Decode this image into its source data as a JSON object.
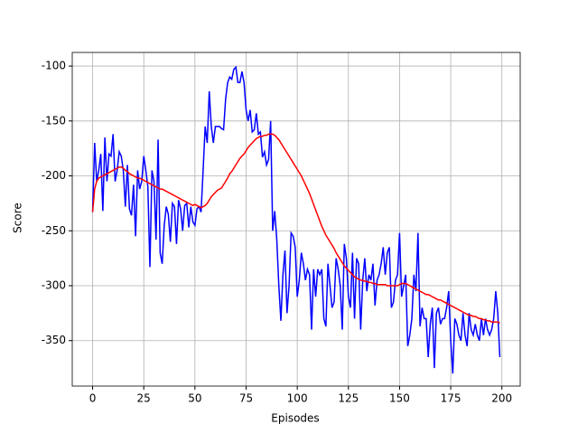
{
  "chart_data": {
    "type": "line",
    "xlabel": "Episodes",
    "ylabel": "Score",
    "x": [
      0,
      1,
      2,
      3,
      4,
      5,
      6,
      7,
      8,
      9,
      10,
      11,
      12,
      13,
      14,
      15,
      16,
      17,
      18,
      19,
      20,
      21,
      22,
      23,
      24,
      25,
      26,
      27,
      28,
      29,
      30,
      31,
      32,
      33,
      34,
      35,
      36,
      37,
      38,
      39,
      40,
      41,
      42,
      43,
      44,
      45,
      46,
      47,
      48,
      49,
      50,
      51,
      52,
      53,
      54,
      55,
      56,
      57,
      58,
      59,
      60,
      61,
      62,
      63,
      64,
      65,
      66,
      67,
      68,
      69,
      70,
      71,
      72,
      73,
      74,
      75,
      76,
      77,
      78,
      79,
      80,
      81,
      82,
      83,
      84,
      85,
      86,
      87,
      88,
      89,
      90,
      91,
      92,
      93,
      94,
      95,
      96,
      97,
      98,
      99,
      100,
      101,
      102,
      103,
      104,
      105,
      106,
      107,
      108,
      109,
      110,
      111,
      112,
      113,
      114,
      115,
      116,
      117,
      118,
      119,
      120,
      121,
      122,
      123,
      124,
      125,
      126,
      127,
      128,
      129,
      130,
      131,
      132,
      133,
      134,
      135,
      136,
      137,
      138,
      139,
      140,
      141,
      142,
      143,
      144,
      145,
      146,
      147,
      148,
      149,
      150,
      151,
      152,
      153,
      154,
      155,
      156,
      157,
      158,
      159,
      160,
      161,
      162,
      163,
      164,
      165,
      166,
      167,
      168,
      169,
      170,
      171,
      172,
      173,
      174,
      175,
      176,
      177,
      178,
      179,
      180,
      181,
      182,
      183,
      184,
      185,
      186,
      187,
      188,
      189,
      190,
      191,
      192,
      193,
      194,
      195,
      196,
      197,
      198,
      199
    ],
    "series": [
      {
        "color": "#0000ff",
        "values": [
          -233,
          -170,
          -205,
          -195,
          -180,
          -232,
          -165,
          -205,
          -180,
          -182,
          -162,
          -205,
          -195,
          -178,
          -182,
          -195,
          -228,
          -190,
          -230,
          -236,
          -208,
          -255,
          -195,
          -212,
          -205,
          -182,
          -195,
          -210,
          -283,
          -195,
          -205,
          -258,
          -167,
          -270,
          -280,
          -245,
          -228,
          -235,
          -260,
          -225,
          -228,
          -262,
          -222,
          -230,
          -250,
          -227,
          -225,
          -247,
          -228,
          -242,
          -245,
          -230,
          -228,
          -233,
          -195,
          -155,
          -170,
          -123,
          -155,
          -170,
          -155,
          -155,
          -155,
          -157,
          -158,
          -130,
          -115,
          -110,
          -112,
          -103,
          -101,
          -115,
          -115,
          -105,
          -115,
          -140,
          -150,
          -140,
          -160,
          -158,
          -143,
          -162,
          -160,
          -183,
          -178,
          -190,
          -185,
          -150,
          -250,
          -232,
          -258,
          -300,
          -332,
          -290,
          -268,
          -325,
          -300,
          -252,
          -255,
          -265,
          -310,
          -295,
          -270,
          -280,
          -295,
          -285,
          -290,
          -340,
          -285,
          -310,
          -285,
          -290,
          -285,
          -330,
          -337,
          -280,
          -300,
          -320,
          -315,
          -275,
          -285,
          -300,
          -340,
          -262,
          -275,
          -310,
          -320,
          -270,
          -330,
          -275,
          -280,
          -340,
          -295,
          -275,
          -305,
          -290,
          -295,
          -280,
          -318,
          -295,
          -290,
          -280,
          -265,
          -290,
          -270,
          -265,
          -320,
          -315,
          -295,
          -290,
          -252,
          -310,
          -300,
          -290,
          -355,
          -345,
          -330,
          -290,
          -305,
          -252,
          -337,
          -320,
          -330,
          -330,
          -365,
          -335,
          -320,
          -375,
          -325,
          -320,
          -335,
          -330,
          -330,
          -320,
          -305,
          -350,
          -380,
          -330,
          -335,
          -345,
          -350,
          -325,
          -345,
          -355,
          -325,
          -340,
          -345,
          -335,
          -345,
          -350,
          -330,
          -345,
          -330,
          -340,
          -345,
          -340,
          -330,
          -305,
          -325,
          -365
        ]
      },
      {
        "color": "#ff0000",
        "values": [
          -233,
          -212,
          -205,
          -202,
          -201,
          -200,
          -199,
          -198,
          -197,
          -196,
          -195,
          -194,
          -193,
          -192,
          -192,
          -193,
          -195,
          -196,
          -198,
          -199,
          -200,
          -201,
          -202,
          -202,
          -203,
          -204,
          -205,
          -206,
          -207,
          -208,
          -209,
          -210,
          -211,
          -212,
          -212,
          -213,
          -214,
          -215,
          -216,
          -217,
          -218,
          -219,
          -220,
          -221,
          -222,
          -223,
          -224,
          -225,
          -226,
          -227,
          -226,
          -227,
          -228,
          -229,
          -228,
          -227,
          -225,
          -222,
          -219,
          -217,
          -215,
          -213,
          -212,
          -211,
          -208,
          -205,
          -202,
          -198,
          -196,
          -193,
          -190,
          -187,
          -184,
          -182,
          -180,
          -177,
          -174,
          -172,
          -170,
          -168,
          -166,
          -165,
          -164,
          -164,
          -163,
          -163,
          -162,
          -162,
          -162,
          -163,
          -165,
          -167,
          -170,
          -173,
          -176,
          -179,
          -182,
          -185,
          -188,
          -191,
          -194,
          -197,
          -200,
          -204,
          -208,
          -212,
          -216,
          -221,
          -226,
          -231,
          -236,
          -241,
          -246,
          -250,
          -254,
          -257,
          -260,
          -263,
          -266,
          -270,
          -273,
          -276,
          -279,
          -282,
          -284,
          -286,
          -288,
          -290,
          -292,
          -293,
          -294,
          -295,
          -295,
          -296,
          -296,
          -297,
          -297,
          -298,
          -298,
          -299,
          -299,
          -299,
          -299,
          -299,
          -300,
          -300,
          -300,
          -300,
          -300,
          -300,
          -299,
          -298,
          -298,
          -298,
          -299,
          -300,
          -301,
          -302,
          -303,
          -304,
          -305,
          -306,
          -307,
          -308,
          -308,
          -309,
          -310,
          -311,
          -312,
          -313,
          -313,
          -314,
          -315,
          -316,
          -317,
          -318,
          -319,
          -320,
          -321,
          -322,
          -323,
          -324,
          -325,
          -326,
          -327,
          -327,
          -328,
          -328,
          -329,
          -330,
          -330,
          -331,
          -331,
          -332,
          -332,
          -333,
          -333,
          -333,
          -333,
          -334
        ]
      }
    ],
    "xlim": [
      -9.95,
      208.95
    ],
    "ylim": [
      -391.4,
      -87.6
    ],
    "xticks": [
      0,
      25,
      50,
      75,
      100,
      125,
      150,
      175,
      200
    ],
    "yticks": [
      -350,
      -300,
      -250,
      -200,
      -150,
      -100
    ],
    "grid": true
  }
}
